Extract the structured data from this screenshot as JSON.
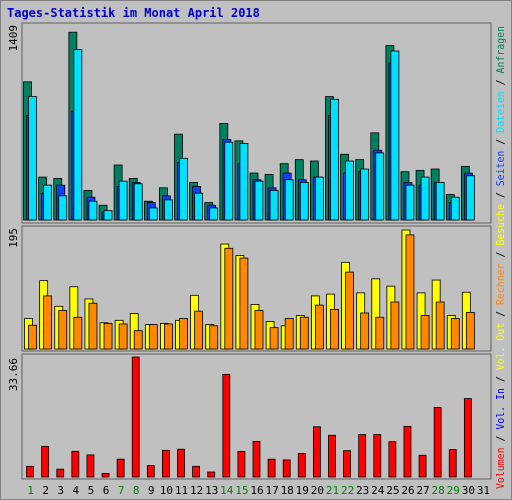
{
  "title": "Tages-Statistik im Monat April 2018",
  "colors": {
    "background": "#c0c0c0",
    "title": "#0000cc",
    "anfragen": "#008060",
    "dateien": "#00e0ff",
    "seiten": "#1040ff",
    "besuche": "#ffff00",
    "rechner": "#ff8800",
    "vol_out": "#ffff00",
    "vol_in": "#0000ff",
    "volumen": "#ff0000",
    "weekend_label": "#008000",
    "weekday_label": "#000000"
  },
  "legend": {
    "anfragen": "Anfragen",
    "dateien": "Dateien",
    "seiten": "Seiten",
    "besuche": "Besuche",
    "rechner": "Rechner",
    "vol_out": "Vol. Out",
    "vol_in": "Vol. In",
    "volumen": "Volumen",
    "sep": "/"
  },
  "chart_data": [
    {
      "type": "bar",
      "title": "Anfragen / Dateien / Seiten",
      "ymax_label": "1409",
      "ylim": [
        0,
        1409
      ],
      "categories": [
        "1",
        "2",
        "3",
        "4",
        "5",
        "6",
        "7",
        "8",
        "9",
        "10",
        "11",
        "12",
        "13",
        "14",
        "15",
        "16",
        "17",
        "18",
        "19",
        "20",
        "21",
        "22",
        "23",
        "24",
        "25",
        "26",
        "27",
        "28",
        "29",
        "30",
        "31"
      ],
      "series": [
        {
          "name": "Anfragen",
          "values": [
            1030,
            320,
            310,
            1400,
            220,
            110,
            410,
            310,
            140,
            240,
            640,
            280,
            130,
            720,
            590,
            350,
            340,
            420,
            450,
            440,
            920,
            490,
            450,
            650,
            1300,
            360,
            370,
            380,
            190,
            400,
            0
          ]
        },
        {
          "name": "Dateien",
          "values": [
            920,
            260,
            180,
            1270,
            140,
            70,
            290,
            270,
            90,
            150,
            460,
            200,
            90,
            580,
            570,
            290,
            220,
            300,
            280,
            320,
            900,
            440,
            380,
            500,
            1260,
            260,
            320,
            280,
            170,
            330,
            0
          ]
        },
        {
          "name": "Seiten",
          "values": [
            780,
            200,
            260,
            810,
            170,
            60,
            250,
            280,
            130,
            180,
            430,
            250,
            110,
            600,
            420,
            300,
            240,
            350,
            300,
            320,
            780,
            350,
            360,
            520,
            1170,
            280,
            260,
            280,
            130,
            350,
            0
          ]
        }
      ]
    },
    {
      "type": "bar",
      "title": "Besuche / Rechner",
      "ymax_label": "195",
      "ylim": [
        0,
        195
      ],
      "categories": [
        "1",
        "2",
        "3",
        "4",
        "5",
        "6",
        "7",
        "8",
        "9",
        "10",
        "11",
        "12",
        "13",
        "14",
        "15",
        "16",
        "17",
        "18",
        "19",
        "20",
        "21",
        "22",
        "23",
        "24",
        "25",
        "26",
        "27",
        "28",
        "29",
        "30",
        "31"
      ],
      "series": [
        {
          "name": "Besuche",
          "values": [
            50,
            112,
            70,
            102,
            82,
            43,
            47,
            58,
            40,
            42,
            47,
            88,
            40,
            172,
            153,
            73,
            45,
            38,
            55,
            87,
            90,
            142,
            92,
            115,
            103,
            195,
            92,
            113,
            55,
            93,
            0
          ]
        },
        {
          "name": "Rechner",
          "values": [
            39,
            87,
            63,
            52,
            75,
            42,
            41,
            30,
            40,
            41,
            50,
            62,
            38,
            165,
            149,
            63,
            35,
            50,
            52,
            72,
            65,
            126,
            59,
            52,
            77,
            187,
            55,
            77,
            50,
            60,
            0
          ]
        }
      ]
    },
    {
      "type": "bar",
      "title": "Volumen",
      "ymax_label": "33.66",
      "ylim": [
        0,
        33.66
      ],
      "categories": [
        "1",
        "2",
        "3",
        "4",
        "5",
        "6",
        "7",
        "8",
        "9",
        "10",
        "11",
        "12",
        "13",
        "14",
        "15",
        "16",
        "17",
        "18",
        "19",
        "20",
        "21",
        "22",
        "23",
        "24",
        "25",
        "26",
        "27",
        "28",
        "29",
        "30",
        "31"
      ],
      "series": [
        {
          "name": "Volumen",
          "values": [
            3.0,
            8.6,
            2.2,
            7.2,
            6.2,
            1.0,
            5.0,
            33.66,
            3.2,
            7.5,
            7.8,
            3.0,
            1.4,
            28.8,
            7.2,
            10.0,
            5.0,
            4.8,
            6.6,
            14.1,
            11.7,
            7.4,
            11.9,
            11.9,
            9.9,
            14.2,
            6.1,
            19.5,
            7.7,
            22.0,
            0
          ]
        }
      ]
    }
  ],
  "x_labels": [
    {
      "text": "1",
      "weekend": true
    },
    {
      "text": "2",
      "weekend": false
    },
    {
      "text": "3",
      "weekend": false
    },
    {
      "text": "4",
      "weekend": false
    },
    {
      "text": "5",
      "weekend": false
    },
    {
      "text": "6",
      "weekend": false
    },
    {
      "text": "7",
      "weekend": true
    },
    {
      "text": "8",
      "weekend": true
    },
    {
      "text": "9",
      "weekend": false
    },
    {
      "text": "10",
      "weekend": false
    },
    {
      "text": "11",
      "weekend": false
    },
    {
      "text": "12",
      "weekend": false
    },
    {
      "text": "13",
      "weekend": false
    },
    {
      "text": "14",
      "weekend": true
    },
    {
      "text": "15",
      "weekend": true
    },
    {
      "text": "16",
      "weekend": false
    },
    {
      "text": "17",
      "weekend": false
    },
    {
      "text": "18",
      "weekend": false
    },
    {
      "text": "19",
      "weekend": false
    },
    {
      "text": "20",
      "weekend": false
    },
    {
      "text": "21",
      "weekend": true
    },
    {
      "text": "22",
      "weekend": true
    },
    {
      "text": "23",
      "weekend": false
    },
    {
      "text": "24",
      "weekend": false
    },
    {
      "text": "25",
      "weekend": false
    },
    {
      "text": "26",
      "weekend": false
    },
    {
      "text": "27",
      "weekend": false
    },
    {
      "text": "28",
      "weekend": true
    },
    {
      "text": "29",
      "weekend": true
    },
    {
      "text": "30",
      "weekend": false
    },
    {
      "text": "31",
      "weekend": false
    }
  ]
}
